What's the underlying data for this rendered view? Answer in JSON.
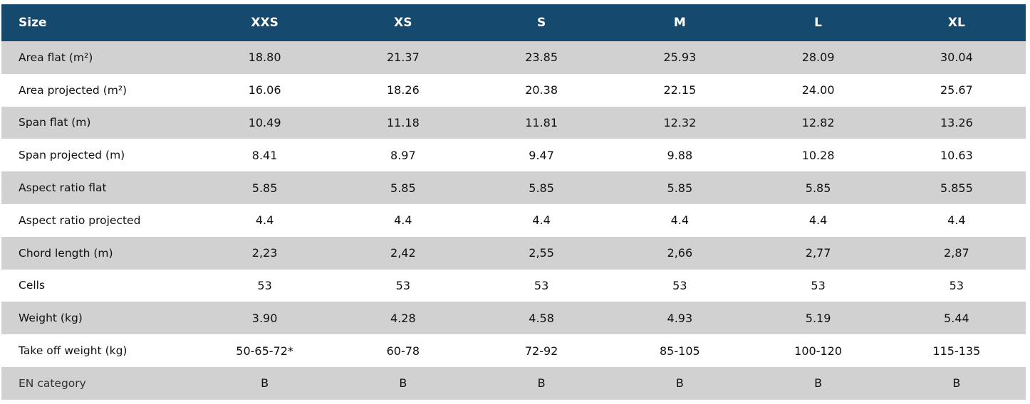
{
  "table": {
    "headers": [
      "Size",
      "XXS",
      "XS",
      "S",
      "M",
      "L",
      "XL"
    ],
    "rows": [
      [
        "Area flat (m²)",
        "18.80",
        "21.37",
        "23.85",
        "25.93",
        "28.09",
        "30.04"
      ],
      [
        "Area projected (m²)",
        "16.06",
        "18.26",
        "20.38",
        "22.15",
        "24.00",
        "25.67"
      ],
      [
        "Span flat (m)",
        "10.49",
        "11.18",
        "11.81",
        "12.32",
        "12.82",
        "13.26"
      ],
      [
        "Span projected (m)",
        "8.41",
        "8.97",
        "9.47",
        "9.88",
        "10.28",
        "10.63"
      ],
      [
        "Aspect ratio flat",
        "5.85",
        "5.85",
        "5.85",
        "5.85",
        "5.85",
        "5.855"
      ],
      [
        "Aspect ratio projected",
        "4.4",
        "4.4",
        "4.4",
        "4.4",
        "4.4",
        "4.4"
      ],
      [
        "Chord length (m)",
        "2,23",
        "2,42",
        "2,55",
        "2,66",
        "2,77",
        "2,87"
      ],
      [
        "Cells",
        "53",
        "53",
        "53",
        "53",
        "53",
        "53"
      ],
      [
        "Weight (kg)",
        "3.90",
        "4.28",
        "4.58",
        "4.93",
        "5.19",
        "5.44"
      ],
      [
        "Take off weight (kg)",
        "50-65-72*",
        "60-78",
        "72-92",
        "85-105",
        "100-120",
        "115-135"
      ],
      [
        "EN category",
        "B",
        "B",
        "B",
        "B",
        "B",
        "B"
      ]
    ]
  },
  "colors": {
    "header_bg": "#154a6e",
    "header_text": "#ffffff",
    "stripe_bg": "#d1d1d1",
    "row_bg": "#ffffff"
  }
}
